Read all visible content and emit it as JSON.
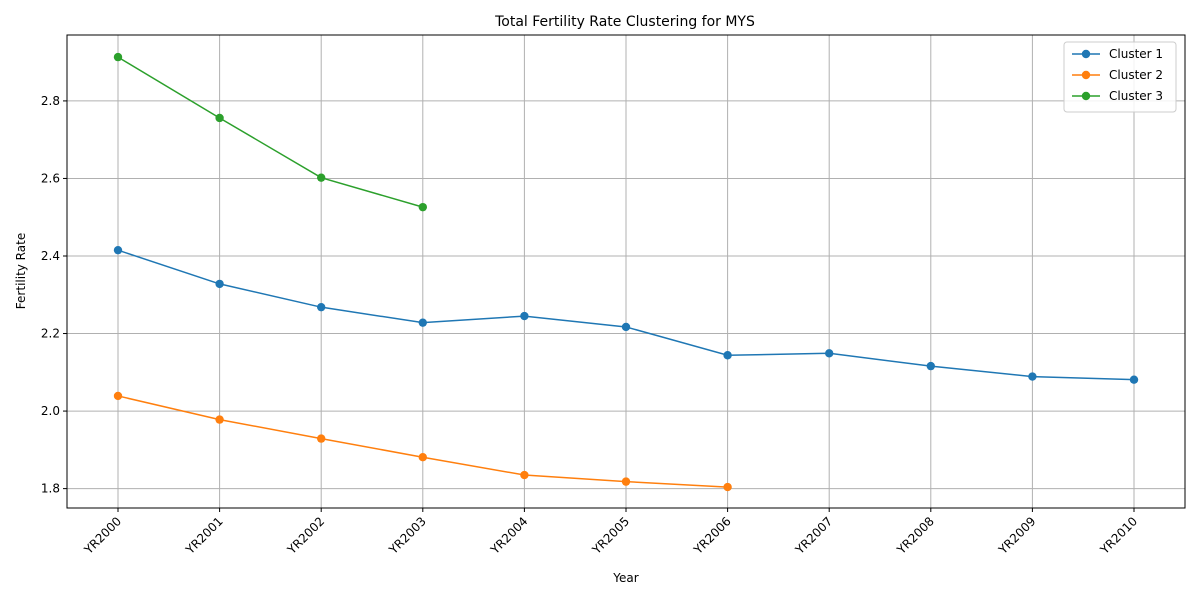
{
  "chart_data": {
    "type": "line",
    "title": "Total Fertility Rate Clustering for MYS",
    "xlabel": "Year",
    "ylabel": "Fertility Rate",
    "categories": [
      "YR2000",
      "YR2001",
      "YR2002",
      "YR2003",
      "YR2004",
      "YR2005",
      "YR2006",
      "YR2007",
      "YR2008",
      "YR2009",
      "YR2010"
    ],
    "ylim": [
      1.75,
      2.97
    ],
    "yticks": [
      "1.8",
      "2.0",
      "2.2",
      "2.4",
      "2.6",
      "2.8"
    ],
    "grid": true,
    "legend_position": "top-right",
    "series": [
      {
        "name": "Cluster 1",
        "color": "#1f77b4",
        "values": [
          2.415,
          2.328,
          2.268,
          2.228,
          2.245,
          2.217,
          2.144,
          2.149,
          2.116,
          2.089,
          2.081
        ]
      },
      {
        "name": "Cluster 2",
        "color": "#ff7f0e",
        "values": [
          2.039,
          1.978,
          1.929,
          1.881,
          1.835,
          1.818,
          1.804,
          null,
          null,
          null,
          null
        ]
      },
      {
        "name": "Cluster 3",
        "color": "#2ca02c",
        "values": [
          2.913,
          2.756,
          2.602,
          2.526,
          null,
          null,
          null,
          null,
          null,
          null,
          null
        ]
      }
    ]
  }
}
